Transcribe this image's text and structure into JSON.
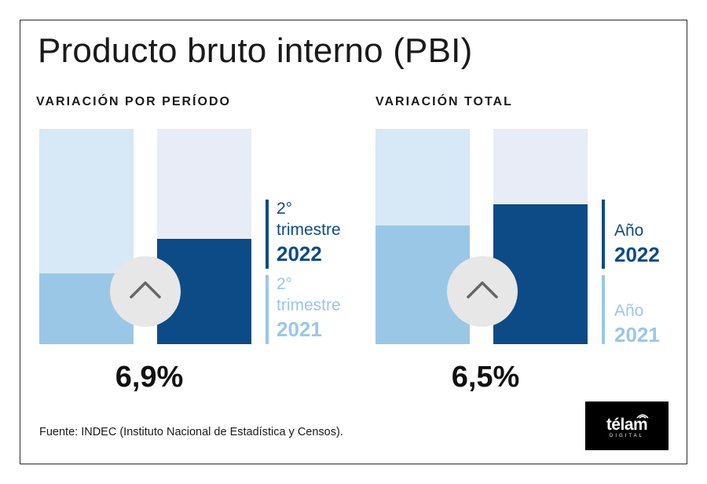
{
  "title": "Producto bruto interno (PBI)",
  "source": "Fuente: INDEC (Instituto Nacional de Estadística y Censos).",
  "logo": {
    "word": "télam",
    "sub": "DIGITAL"
  },
  "colors": {
    "dark_blue": "#0d4b86",
    "light_blue": "#9bc7e6",
    "pale_left": "#d7e8f6",
    "pale_right": "#e8ecf6",
    "chevron_bg": "#e7e7e7",
    "chevron_stroke": "#666666"
  },
  "icons": {
    "chevron": "chevron-up-icon",
    "logo_signal": "signal-wave-icon"
  },
  "chart_data": [
    {
      "type": "bar",
      "title": "VARIACIÓN POR PERÍODO",
      "value_label": "6,9%",
      "series": [
        {
          "name_line1": "2°",
          "name_line2": "trimestre",
          "name_line3": "2021",
          "fill_fraction": 0.33,
          "color": "#9bc7e6"
        },
        {
          "name_line1": "2°",
          "name_line2": "trimestre",
          "name_line3": "2022",
          "fill_fraction": 0.49,
          "color": "#0d4b86"
        }
      ]
    },
    {
      "type": "bar",
      "title": "VARIACIÓN TOTAL",
      "value_label": "6,5%",
      "series": [
        {
          "name_line1": "Año",
          "name_line3": "2021",
          "fill_fraction": 0.55,
          "color": "#9bc7e6"
        },
        {
          "name_line1": "Año",
          "name_line3": "2022",
          "fill_fraction": 0.65,
          "color": "#0d4b86"
        }
      ]
    }
  ]
}
